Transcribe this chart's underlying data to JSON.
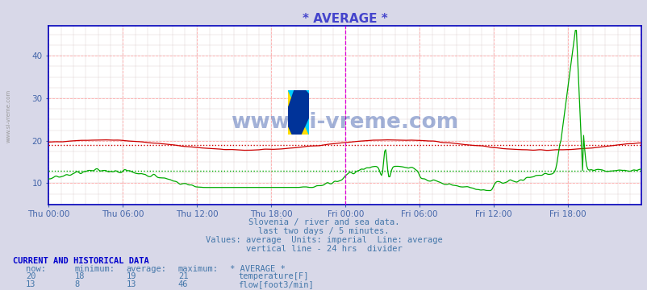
{
  "title": "* AVERAGE *",
  "title_color": "#4444cc",
  "bg_color": "#d8d8e8",
  "plot_bg_color": "#ffffff",
  "axis_color": "#0000bb",
  "tick_color": "#4466aa",
  "ylim": [
    5,
    47
  ],
  "yticks": [
    10,
    20,
    30,
    40
  ],
  "xtick_labels": [
    "Thu 00:00",
    "Thu 06:00",
    "Thu 12:00",
    "Thu 18:00",
    "Fri 00:00",
    "Fri 06:00",
    "Fri 12:00",
    "Fri 18:00"
  ],
  "n_points": 576,
  "temp_avg": 19,
  "temp_min": 18,
  "temp_max": 21,
  "temp_now": 20,
  "flow_avg": 13,
  "flow_min": 8,
  "flow_max": 46,
  "flow_now": 13,
  "temp_color": "#cc0000",
  "flow_color": "#00aa00",
  "vline_color": "#dd00dd",
  "subtitle1": "Slovenia / river and sea data.",
  "subtitle2": "last two days / 5 minutes.",
  "subtitle3": "Values: average  Units: imperial  Line: average",
  "subtitle4": "vertical line - 24 hrs  divider",
  "subtitle_color": "#4477aa",
  "footer_title": "CURRENT AND HISTORICAL DATA",
  "footer_color": "#0000cc",
  "watermark": "www.si-vreme.com",
  "watermark_color": "#3355aa",
  "grid_major_color": "#ffaaaa",
  "grid_minor_color": "#ddcccc"
}
